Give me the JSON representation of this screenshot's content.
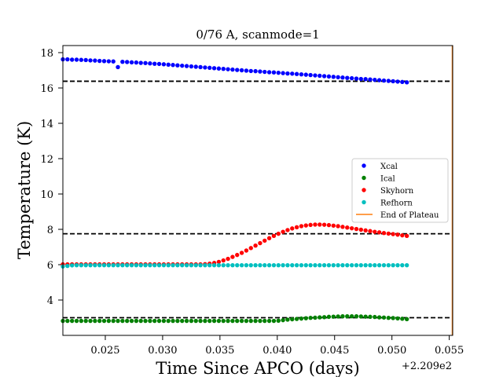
{
  "chart_data": {
    "type": "scatter",
    "title": "0/76 A, scanmode=1",
    "xlabel": "Time Since APCO (days)",
    "ylabel": "Temperature (K)",
    "x_offset_label": "+2.209e2",
    "xlim": [
      0.0213,
      0.0553
    ],
    "ylim": [
      2.0,
      18.4
    ],
    "x_ticks": [
      0.025,
      0.03,
      0.035,
      0.04,
      0.045,
      0.05,
      0.055
    ],
    "x_tick_labels": [
      "0.025",
      "0.030",
      "0.035",
      "0.040",
      "0.045",
      "0.050",
      "0.055"
    ],
    "y_ticks": [
      4,
      6,
      8,
      10,
      12,
      14,
      16,
      18
    ],
    "y_tick_labels": [
      "4",
      "6",
      "8",
      "10",
      "12",
      "14",
      "16",
      "18"
    ],
    "grid": false,
    "legend_position": "center-right",
    "x_start": 0.0213,
    "x_step": 0.0004,
    "series": [
      {
        "name": "Xcal",
        "color": "#0000ff",
        "marker": "dot",
        "y": [
          17.62,
          17.62,
          17.6,
          17.6,
          17.59,
          17.58,
          17.56,
          17.55,
          17.53,
          17.52,
          17.51,
          17.5,
          17.18,
          17.48,
          17.47,
          17.45,
          17.44,
          17.42,
          17.41,
          17.39,
          17.37,
          17.36,
          17.34,
          17.32,
          17.3,
          17.28,
          17.26,
          17.24,
          17.22,
          17.2,
          17.18,
          17.16,
          17.14,
          17.12,
          17.1,
          17.08,
          17.06,
          17.04,
          17.02,
          17.0,
          16.98,
          16.96,
          16.95,
          16.93,
          16.91,
          16.89,
          16.88,
          16.86,
          16.84,
          16.82,
          16.81,
          16.79,
          16.77,
          16.75,
          16.73,
          16.71,
          16.69,
          16.67,
          16.65,
          16.63,
          16.61,
          16.59,
          16.57,
          16.55,
          16.53,
          16.51,
          16.5,
          16.48,
          16.46,
          16.44,
          16.42,
          16.4,
          16.38,
          16.36,
          16.34,
          16.32
        ]
      },
      {
        "name": "Ical",
        "color": "#008000",
        "marker": "dot",
        "y": [
          2.82,
          2.82,
          2.82,
          2.82,
          2.82,
          2.82,
          2.82,
          2.82,
          2.82,
          2.82,
          2.82,
          2.82,
          2.82,
          2.82,
          2.82,
          2.82,
          2.82,
          2.82,
          2.82,
          2.82,
          2.82,
          2.82,
          2.82,
          2.82,
          2.82,
          2.82,
          2.82,
          2.82,
          2.82,
          2.82,
          2.82,
          2.82,
          2.82,
          2.82,
          2.82,
          2.82,
          2.82,
          2.82,
          2.82,
          2.82,
          2.82,
          2.82,
          2.82,
          2.82,
          2.82,
          2.82,
          2.82,
          2.83,
          2.86,
          2.89,
          2.91,
          2.93,
          2.95,
          2.97,
          2.99,
          3.0,
          3.02,
          3.03,
          3.05,
          3.06,
          3.07,
          3.08,
          3.08,
          3.08,
          3.08,
          3.07,
          3.06,
          3.05,
          3.04,
          3.02,
          3.01,
          2.99,
          2.98,
          2.96,
          2.94,
          2.92
        ]
      },
      {
        "name": "Skyhorn",
        "color": "#ff0000",
        "marker": "dot",
        "y": [
          6.02,
          6.02,
          6.02,
          6.02,
          6.02,
          6.02,
          6.02,
          6.02,
          6.02,
          6.02,
          6.02,
          6.02,
          6.02,
          6.02,
          6.02,
          6.02,
          6.02,
          6.02,
          6.02,
          6.02,
          6.02,
          6.02,
          6.02,
          6.02,
          6.02,
          6.02,
          6.02,
          6.02,
          6.02,
          6.02,
          6.02,
          6.03,
          6.06,
          6.1,
          6.16,
          6.24,
          6.33,
          6.44,
          6.55,
          6.67,
          6.8,
          6.94,
          7.08,
          7.22,
          7.36,
          7.5,
          7.63,
          7.75,
          7.86,
          7.96,
          8.05,
          8.12,
          8.18,
          8.22,
          8.25,
          8.27,
          8.27,
          8.26,
          8.24,
          8.21,
          8.18,
          8.14,
          8.1,
          8.06,
          8.02,
          7.98,
          7.94,
          7.9,
          7.86,
          7.83,
          7.79,
          7.76,
          7.73,
          7.7,
          7.66,
          7.63
        ]
      },
      {
        "name": "Refhorn",
        "color": "#00bfbf",
        "marker": "dot",
        "y": [
          5.9,
          5.93,
          5.96,
          5.97,
          5.97,
          5.97,
          5.97,
          5.97,
          5.97,
          5.97,
          5.97,
          5.97,
          5.97,
          5.97,
          5.97,
          5.97,
          5.97,
          5.97,
          5.97,
          5.97,
          5.97,
          5.97,
          5.97,
          5.97,
          5.97,
          5.97,
          5.97,
          5.97,
          5.97,
          5.97,
          5.97,
          5.97,
          5.97,
          5.97,
          5.97,
          5.97,
          5.97,
          5.97,
          5.97,
          5.97,
          5.97,
          5.97,
          5.97,
          5.97,
          5.97,
          5.97,
          5.97,
          5.97,
          5.97,
          5.97,
          5.97,
          5.97,
          5.97,
          5.97,
          5.97,
          5.97,
          5.97,
          5.97,
          5.97,
          5.97,
          5.97,
          5.97,
          5.97,
          5.97,
          5.97,
          5.97,
          5.97,
          5.97,
          5.97,
          5.97,
          5.97,
          5.97,
          5.97,
          5.97,
          5.97,
          5.97
        ]
      },
      {
        "name": "End of Plateau",
        "color": "#ff7f0e",
        "marker": "vline",
        "x": 0.0553
      }
    ],
    "dashed_lines": [
      16.38,
      7.75,
      3.0
    ]
  }
}
